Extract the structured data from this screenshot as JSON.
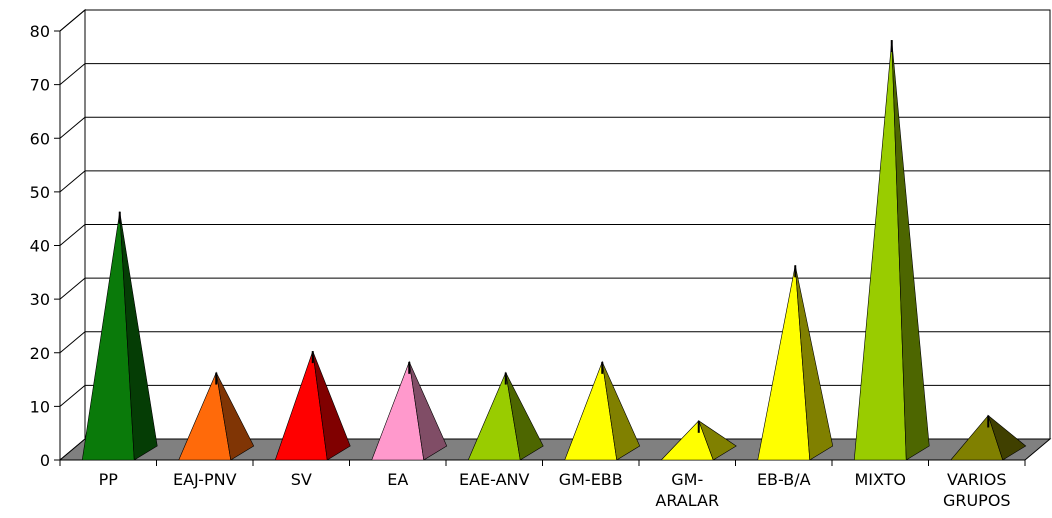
{
  "chart_data": {
    "type": "bar",
    "style": "3d-pyramid",
    "categories": [
      "PP",
      "EAJ-PNV",
      "SV",
      "EA",
      "EAE-ANV",
      "GM-EBB",
      "GM-ARALAR",
      "EB-B/A",
      "MIXTO",
      "VARIOS GRUPOS"
    ],
    "category_label_lines": [
      [
        "PP"
      ],
      [
        "EAJ-PNV"
      ],
      [
        "SV"
      ],
      [
        "EA"
      ],
      [
        "EAE-ANV"
      ],
      [
        "GM-EBB"
      ],
      [
        "GM-",
        "ARALAR"
      ],
      [
        "EB-B/A"
      ],
      [
        "MIXTO"
      ],
      [
        "VARIOS",
        "GRUPOS"
      ]
    ],
    "values": [
      45,
      15,
      19,
      17,
      15,
      17,
      6,
      35,
      77,
      7
    ],
    "colors": [
      "#0a7a0a",
      "#ff6a0a",
      "#ff0000",
      "#ff99cc",
      "#99cc00",
      "#ffff00",
      "#ffff00",
      "#ffff00",
      "#99cc00",
      "#808000"
    ],
    "ylim": [
      0,
      80
    ],
    "yticks": [
      0,
      10,
      20,
      30,
      40,
      50,
      60,
      70,
      80
    ],
    "grid": true,
    "legend": "none",
    "title": "",
    "xlabel": "",
    "ylabel": ""
  }
}
